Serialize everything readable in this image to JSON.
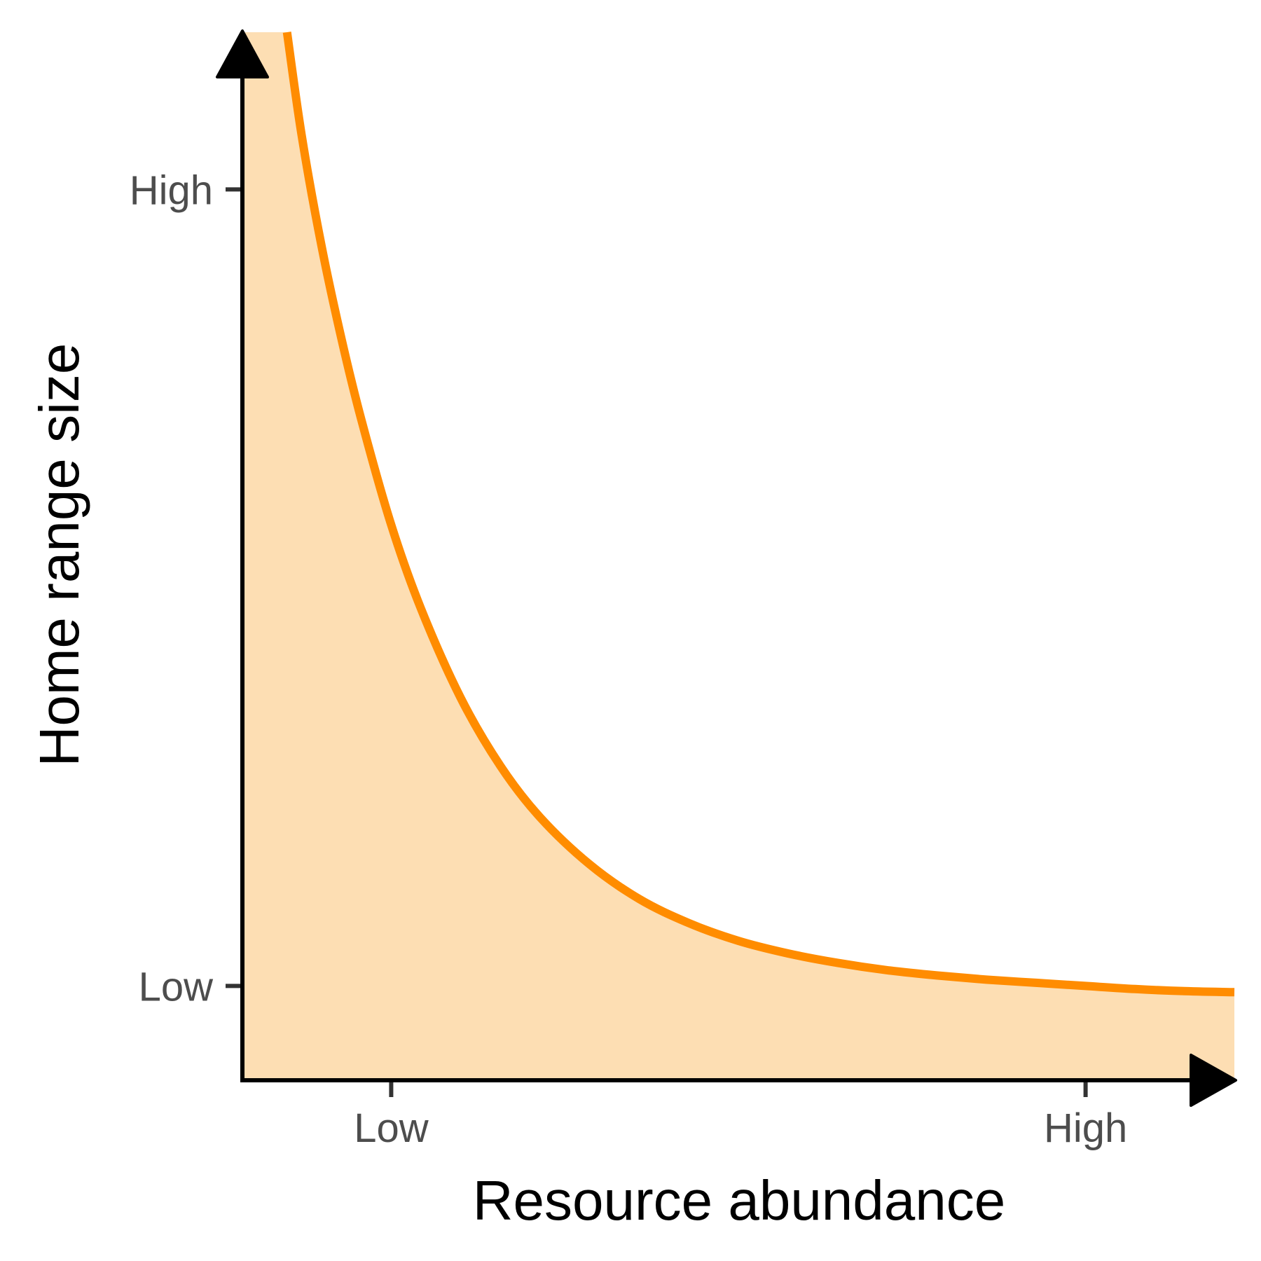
{
  "chart_data": {
    "type": "area",
    "title": "",
    "xlabel": "Resource abundance",
    "ylabel": "Home range size",
    "x_ticks": [
      {
        "label": "Low",
        "value": 0.15
      },
      {
        "label": "High",
        "value": 0.85
      }
    ],
    "y_ticks": [
      {
        "label": "Low",
        "value": 0.09
      },
      {
        "label": "High",
        "value": 0.85
      }
    ],
    "xlim": [
      0,
      1
    ],
    "ylim": [
      0,
      1
    ],
    "grid": false,
    "legend": "none",
    "series": [
      {
        "x": [
          0.045,
          0.06,
          0.08,
          0.1,
          0.12,
          0.15,
          0.18,
          0.22,
          0.26,
          0.3,
          0.35,
          0.4,
          0.45,
          0.5,
          0.55,
          0.6,
          0.65,
          0.7,
          0.75,
          0.8,
          0.85,
          0.9,
          0.95,
          1.0
        ],
        "y": [
          1.0,
          0.9,
          0.795,
          0.707,
          0.63,
          0.53,
          0.45,
          0.365,
          0.3,
          0.251,
          0.206,
          0.173,
          0.15,
          0.133,
          0.121,
          0.112,
          0.105,
          0.1,
          0.096,
          0.093,
          0.09,
          0.087,
          0.085,
          0.084
        ]
      }
    ],
    "colors": {
      "line": "#ff8c00",
      "fill": "#fddeb3",
      "axis": "#000000",
      "tick": "#333333"
    }
  }
}
